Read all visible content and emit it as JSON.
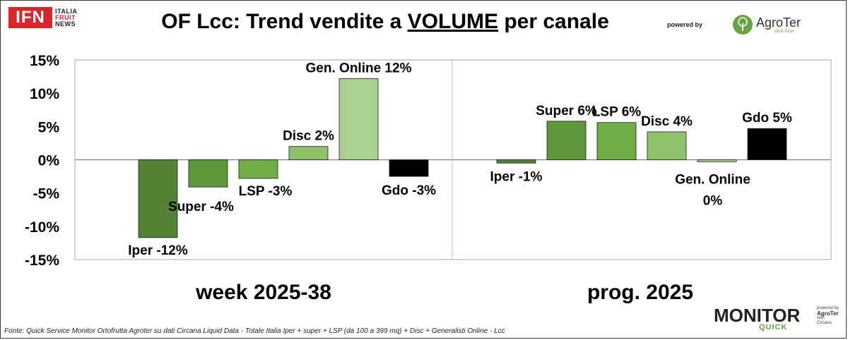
{
  "header": {
    "title_prefix": "OF Lcc: Trend vendite a ",
    "title_underlined": "VOLUME",
    "title_suffix": " per canale",
    "ifn_logo": {
      "box_text": "IFN",
      "line1": "ITALIA",
      "line2": "FRUIT",
      "line3": "NEWS"
    },
    "powered_by": "powered by",
    "agroter_logo": {
      "name": "AgroTer",
      "tagline": "think fresh"
    }
  },
  "footer": {
    "source_note": "Fonte: Quick Service Monitor Ortofrutta Agroter su dati Circana Liquid Data - Totale Italia Iper + super + LSP (da 100 a 399 mq) + Disc + Generalisti Online - Lcc",
    "monitor_logo": {
      "word": "MONITOR",
      "sub": "QUICK",
      "side1": "powered by",
      "side2": "AgroTer",
      "side3": "with",
      "side4": "Circana"
    }
  },
  "colors": {
    "iper": "#548235",
    "super": "#5e9738",
    "lsp": "#70ad47",
    "disc": "#8fc06a",
    "gen_online": "#a9d08e",
    "gdo": "#000000",
    "ifn_red": "#d9262c",
    "agroter_green": "#6aa23f"
  },
  "chart_data": {
    "type": "bar",
    "ylim": [
      -15,
      15
    ],
    "yticks": [
      "15%",
      "10%",
      "5%",
      "0%",
      "-5%",
      "-10%",
      "-15%"
    ],
    "ytick_values": [
      15,
      10,
      5,
      0,
      -5,
      -10,
      -15
    ],
    "grid": false,
    "panels": [
      {
        "label": "week 2025-38",
        "bars": [
          {
            "category": "Iper",
            "value": -11.7,
            "label": "Iper -12%",
            "color_key": "iper"
          },
          {
            "category": "Super",
            "value": -4.1,
            "label": "Super -4%",
            "color_key": "super"
          },
          {
            "category": "LSP",
            "value": -2.8,
            "label": "LSP -3%",
            "color_key": "lsp"
          },
          {
            "category": "Disc",
            "value": 2.0,
            "label": "Disc 2%",
            "color_key": "disc"
          },
          {
            "category": "Gen. Online",
            "value": 12.2,
            "label": "Gen. Online 12%",
            "color_key": "gen_online"
          },
          {
            "category": "Gdo",
            "value": -2.5,
            "label": "Gdo -3%",
            "color_key": "gdo"
          }
        ]
      },
      {
        "label": "prog. 2025",
        "bars": [
          {
            "category": "Iper",
            "value": -0.5,
            "label": "Iper -1%",
            "color_key": "iper"
          },
          {
            "category": "Super",
            "value": 5.8,
            "label": "Super 6%",
            "color_key": "super"
          },
          {
            "category": "LSP",
            "value": 5.6,
            "label": "LSP 6%",
            "color_key": "lsp"
          },
          {
            "category": "Disc",
            "value": 4.2,
            "label": "Disc 4%",
            "color_key": "disc"
          },
          {
            "category": "Gen. Online",
            "value": -0.3,
            "label": "Gen. Online 0%",
            "label_lines": [
              "Gen. Online",
              "0%"
            ],
            "color_key": "gen_online"
          },
          {
            "category": "Gdo",
            "value": 4.7,
            "label": "Gdo 5%",
            "color_key": "gdo"
          }
        ]
      }
    ]
  }
}
